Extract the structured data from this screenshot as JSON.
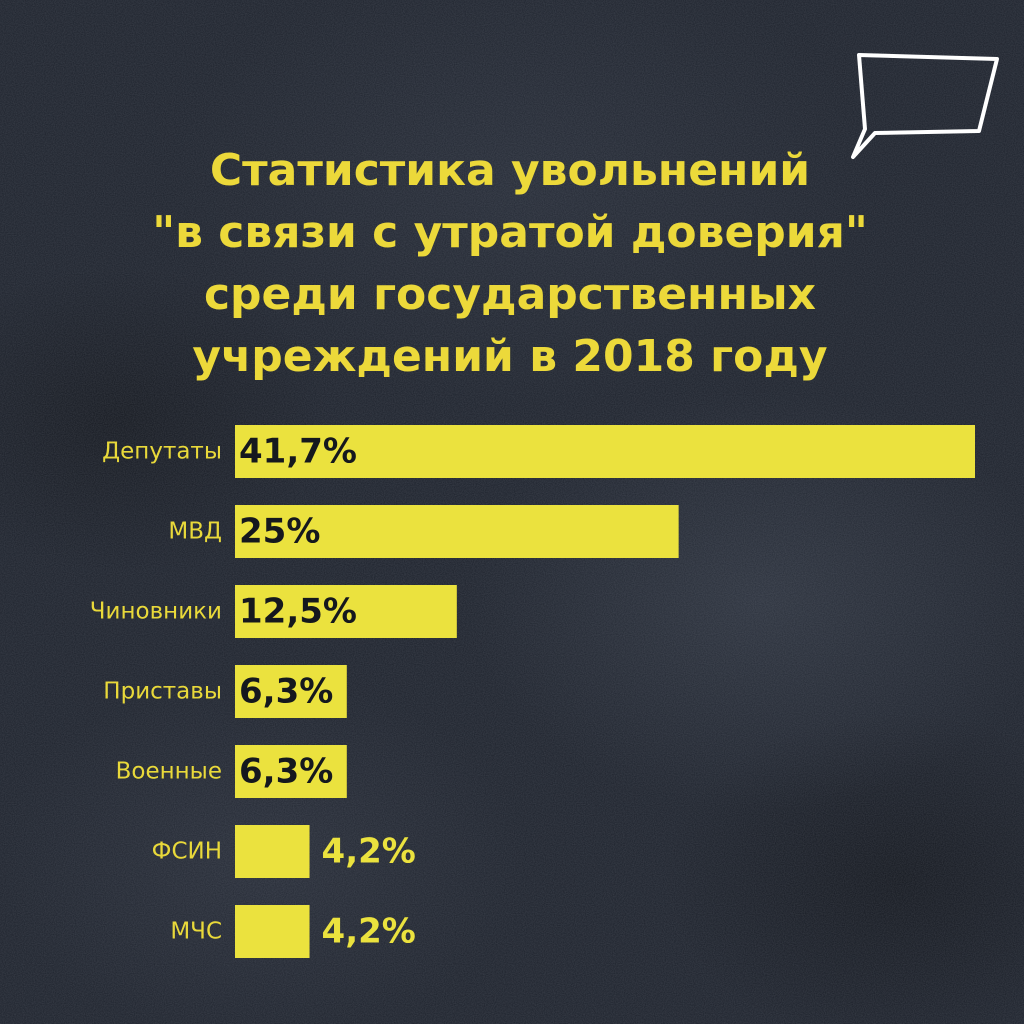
{
  "title_lines": [
    "Статистика увольнений",
    "\"в связи с утратой доверия\"",
    "среди государственных",
    "учреждений в 2018 году"
  ],
  "colors": {
    "background": "#1c212b",
    "bar": "#ebe23e",
    "title": "#ecd93a",
    "label_on_bar": "#15181e",
    "label_outside": "#ebe23e"
  },
  "icon": "speech-bubble-icon",
  "chart_data": {
    "type": "bar",
    "orientation": "horizontal",
    "categories": [
      "Депутаты",
      "МВД",
      "Чиновники",
      "Приставы",
      "Военные",
      "ФСИН",
      "МЧС"
    ],
    "values": [
      41.7,
      25,
      12.5,
      6.3,
      6.3,
      4.2,
      4.2
    ],
    "value_labels": [
      "41,7%",
      "25%",
      "12,5%",
      "6,3%",
      "6,3%",
      "4,2%",
      "4,2%"
    ],
    "xlim": [
      0,
      41.7
    ],
    "grid": false,
    "legend": "none"
  }
}
